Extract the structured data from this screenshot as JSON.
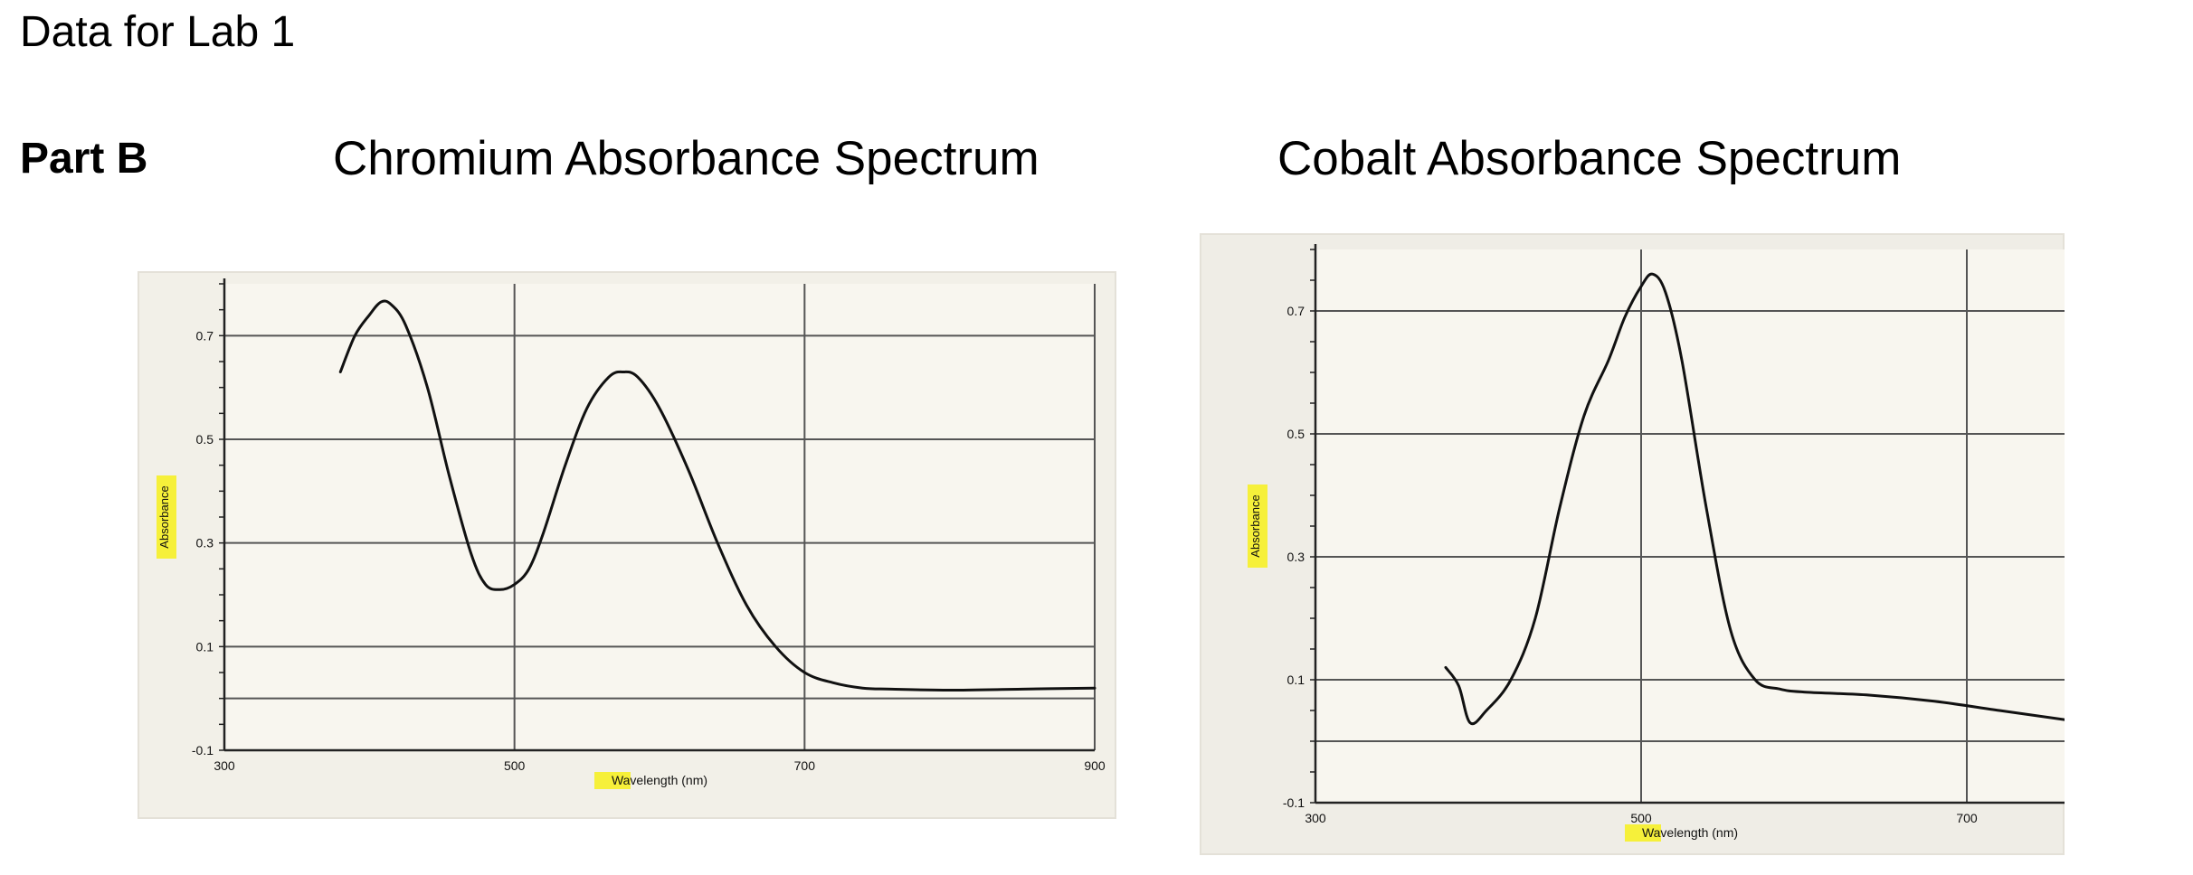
{
  "document": {
    "title": "Data for Lab 1",
    "part_label": "Part B"
  },
  "chart_data": [
    {
      "type": "line",
      "title": "Chromium Absorbance Spectrum",
      "xlabel": "Wavelength (nm)",
      "ylabel": "Absorbance",
      "xlim": [
        300,
        900
      ],
      "ylim": [
        -0.1,
        0.8
      ],
      "x_ticks": [
        "300",
        "500",
        "700",
        "900"
      ],
      "y_ticks": [
        "-0.1",
        "0.1",
        "0.3",
        "0.5",
        "0.7"
      ],
      "grid": true,
      "label_highlight_color": "#f6f03a",
      "line_color": "#111111",
      "series": [
        {
          "x": [
            380,
            390,
            400,
            408,
            415,
            425,
            440,
            455,
            470,
            480,
            490,
            500,
            510,
            520,
            535,
            550,
            565,
            575,
            585,
            600,
            620,
            640,
            660,
            680,
            700,
            720,
            740,
            760,
            800,
            850,
            900
          ],
          "y": [
            0.63,
            0.7,
            0.74,
            0.765,
            0.76,
            0.72,
            0.6,
            0.43,
            0.28,
            0.22,
            0.21,
            0.22,
            0.25,
            0.32,
            0.45,
            0.56,
            0.62,
            0.63,
            0.62,
            0.56,
            0.44,
            0.3,
            0.18,
            0.1,
            0.05,
            0.03,
            0.02,
            0.018,
            0.016,
            0.018,
            0.02
          ]
        }
      ]
    },
    {
      "type": "line",
      "title": "Cobalt Absorbance Spectrum",
      "xlabel": "Wavelength (nm)",
      "ylabel": "Absorbance",
      "xlim": [
        300,
        760
      ],
      "ylim": [
        -0.1,
        0.8
      ],
      "x_ticks": [
        "300",
        "500",
        "700"
      ],
      "y_ticks": [
        "-0.1",
        "0.1",
        "0.3",
        "0.5",
        "0.7"
      ],
      "grid": true,
      "label_highlight_color": "#f6f03a",
      "line_color": "#111111",
      "series": [
        {
          "x": [
            380,
            388,
            395,
            405,
            420,
            435,
            450,
            465,
            480,
            490,
            500,
            507,
            515,
            525,
            540,
            555,
            570,
            585,
            600,
            640,
            680,
            720,
            760
          ],
          "y": [
            0.12,
            0.09,
            0.03,
            0.05,
            0.1,
            0.2,
            0.38,
            0.53,
            0.62,
            0.69,
            0.74,
            0.76,
            0.73,
            0.62,
            0.38,
            0.18,
            0.1,
            0.085,
            0.08,
            0.075,
            0.065,
            0.05,
            0.035
          ]
        }
      ]
    }
  ]
}
